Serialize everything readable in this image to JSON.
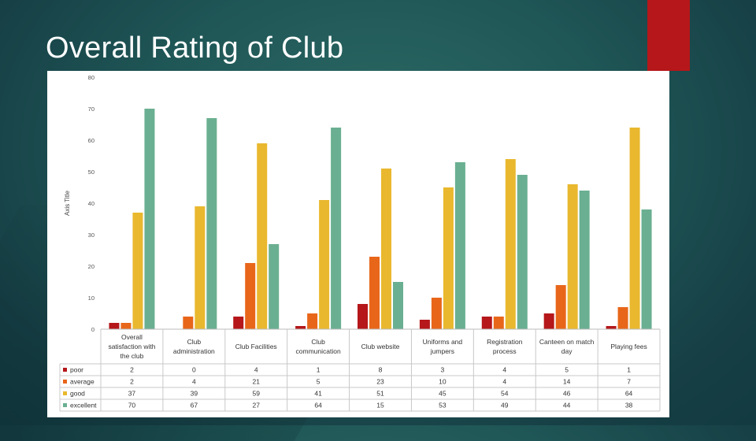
{
  "title": "Overall Rating of Club",
  "colors": {
    "poor": "#b5171a",
    "average": "#e8661a",
    "good": "#e9b82e",
    "excellent": "#6aaf91",
    "accent": "#b5171a"
  },
  "chart_data": {
    "type": "bar",
    "ylabel": "Axis Title",
    "xlabel": "",
    "ylim": [
      0,
      80
    ],
    "yticks": [
      0,
      10,
      20,
      30,
      40,
      50,
      60,
      70,
      80
    ],
    "categories": [
      [
        "Overall",
        "satisfaction with",
        "the club"
      ],
      [
        "Club",
        "administration"
      ],
      [
        "Club Facilities"
      ],
      [
        "Club",
        "communication"
      ],
      [
        "Club website"
      ],
      [
        "Uniforms and",
        "jumpers"
      ],
      [
        "Registration",
        "process"
      ],
      [
        "Canteen on match",
        "day"
      ],
      [
        "Playing fees"
      ]
    ],
    "series": [
      {
        "name": "poor",
        "color": "#b5171a",
        "values": [
          2,
          0,
          4,
          1,
          8,
          3,
          4,
          5,
          1
        ]
      },
      {
        "name": "average",
        "color": "#e8661a",
        "values": [
          2,
          4,
          21,
          5,
          23,
          10,
          4,
          14,
          7
        ]
      },
      {
        "name": "good",
        "color": "#e9b82e",
        "values": [
          37,
          39,
          59,
          41,
          51,
          45,
          54,
          46,
          64
        ]
      },
      {
        "name": "excellent",
        "color": "#6aaf91",
        "values": [
          70,
          67,
          27,
          64,
          15,
          53,
          49,
          44,
          38
        ]
      }
    ],
    "legend": "data-table"
  }
}
